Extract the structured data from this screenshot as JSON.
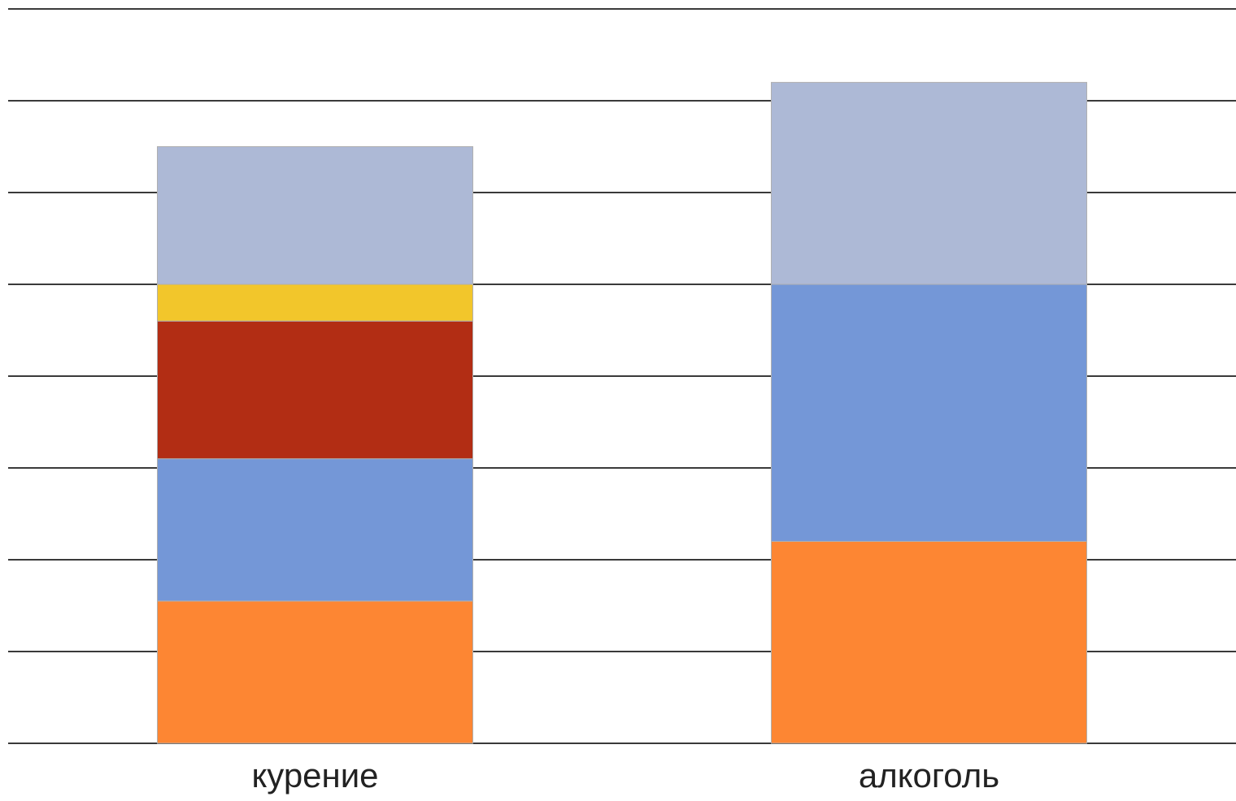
{
  "chart_data": {
    "type": "stacked_bar",
    "categories": [
      "курение",
      "алкоголь"
    ],
    "series": [
      {
        "color": "#fd8633",
        "values": [
          1.55,
          2.2
        ]
      },
      {
        "color": "#7497d7",
        "values": [
          1.55,
          2.8
        ]
      },
      {
        "color": "#b22d14",
        "values": [
          1.5,
          0
        ]
      },
      {
        "color": "#f2c62b",
        "values": [
          0.4,
          0
        ]
      },
      {
        "color": "#adb9d6",
        "values": [
          1.5,
          2.2
        ]
      }
    ],
    "ylim": [
      0,
      8
    ],
    "yticks": [
      0,
      1,
      2,
      3,
      4,
      5,
      6,
      7,
      8
    ],
    "grid": true,
    "ytick_labels": false
  }
}
